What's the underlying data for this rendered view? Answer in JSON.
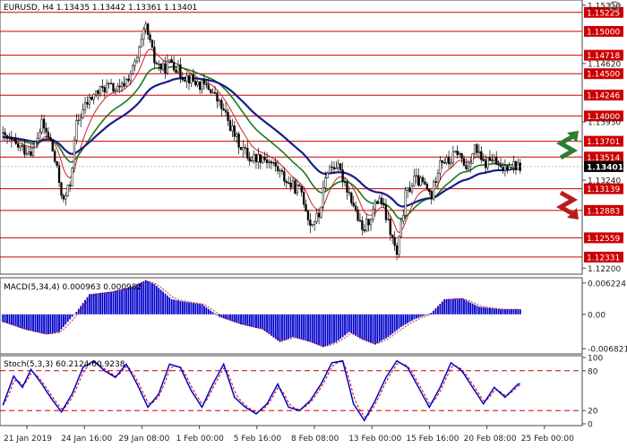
{
  "chart_data": [
    {
      "type": "candlestick",
      "title": "EURUSD, H4  1.13435 1.13442 1.13361 1.13401",
      "symbol": "EURUSD",
      "timeframe": "H4",
      "ohlc_text": "1.13435 1.13442 1.13361 1.13401",
      "ylim": [
        1.1215,
        1.1535
      ],
      "y_ticks": [
        "1.15310",
        "1.14620",
        "1.13930",
        "1.13240",
        "1.12200"
      ],
      "current_price": "1.13401",
      "levels": [
        {
          "label": "1.15225",
          "value": 1.15225
        },
        {
          "label": "1.15000",
          "value": 1.15
        },
        {
          "label": "1.14718",
          "value": 1.14718
        },
        {
          "label": "1.14500",
          "value": 1.145
        },
        {
          "label": "1.14246",
          "value": 1.14246
        },
        {
          "label": "1.14000",
          "value": 1.14
        },
        {
          "label": "1.13701",
          "value": 1.13701
        },
        {
          "label": "1.13514",
          "value": 1.13514
        },
        {
          "label": "1.13139",
          "value": 1.13139
        },
        {
          "label": "1.12883",
          "value": 1.12883
        },
        {
          "label": "1.12559",
          "value": 1.12559
        },
        {
          "label": "1.12331",
          "value": 1.12331
        }
      ],
      "close_anchors": [
        [
          0,
          1.1375
        ],
        [
          6,
          1.1365
        ],
        [
          10,
          1.136
        ],
        [
          14,
          1.136
        ],
        [
          18,
          1.139
        ],
        [
          22,
          1.137
        ],
        [
          25,
          1.1335
        ],
        [
          28,
          1.1298
        ],
        [
          31,
          1.132
        ],
        [
          34,
          1.139
        ],
        [
          38,
          1.1412
        ],
        [
          42,
          1.1425
        ],
        [
          48,
          1.1435
        ],
        [
          54,
          1.143
        ],
        [
          60,
          1.1455
        ],
        [
          62,
          1.1468
        ],
        [
          66,
          1.1505
        ],
        [
          70,
          1.1465
        ],
        [
          74,
          1.1455
        ],
        [
          78,
          1.1465
        ],
        [
          82,
          1.145
        ],
        [
          86,
          1.1445
        ],
        [
          90,
          1.1438
        ],
        [
          96,
          1.1432
        ],
        [
          102,
          1.1405
        ],
        [
          108,
          1.1372
        ],
        [
          114,
          1.135
        ],
        [
          120,
          1.1352
        ],
        [
          126,
          1.134
        ],
        [
          132,
          1.132
        ],
        [
          138,
          1.131
        ],
        [
          142,
          1.1272
        ],
        [
          146,
          1.1282
        ],
        [
          150,
          1.1338
        ],
        [
          154,
          1.1342
        ],
        [
          158,
          1.1322
        ],
        [
          162,
          1.1295
        ],
        [
          166,
          1.1262
        ],
        [
          170,
          1.1282
        ],
        [
          174,
          1.1305
        ],
        [
          178,
          1.1272
        ],
        [
          182,
          1.1235
        ],
        [
          186,
          1.1305
        ],
        [
          190,
          1.1325
        ],
        [
          194,
          1.132
        ],
        [
          198,
          1.1305
        ],
        [
          202,
          1.135
        ],
        [
          206,
          1.1345
        ],
        [
          210,
          1.1358
        ],
        [
          214,
          1.1338
        ],
        [
          218,
          1.1362
        ],
        [
          222,
          1.1342
        ],
        [
          226,
          1.135
        ],
        [
          230,
          1.1335
        ],
        [
          234,
          1.1345
        ],
        [
          238,
          1.134
        ]
      ],
      "moving_averages": [
        {
          "name": "MA fast",
          "color": "#cc2222"
        },
        {
          "name": "MA medium",
          "color": "#1a7a1a"
        },
        {
          "name": "MA slow",
          "color": "#1a1a8a"
        }
      ],
      "up_candle_color": "#ffffff",
      "down_candle_color": "#000000"
    },
    {
      "type": "histogram",
      "title": "MACD(5,34,4) 0.000963 0.000982",
      "label": "MACD(5,34,4)",
      "values_text": "0.000963 0.000982",
      "y_ticks": [
        "0.006224",
        "0.00",
        "-0.006821"
      ],
      "ylim": [
        -0.0075,
        0.0069
      ],
      "anchors": [
        [
          0,
          -0.0015
        ],
        [
          10,
          -0.003
        ],
        [
          20,
          -0.004
        ],
        [
          26,
          -0.0035
        ],
        [
          34,
          0.0005
        ],
        [
          40,
          0.004
        ],
        [
          50,
          0.0045
        ],
        [
          60,
          0.0055
        ],
        [
          66,
          0.0068
        ],
        [
          70,
          0.006
        ],
        [
          78,
          0.003
        ],
        [
          84,
          0.0025
        ],
        [
          92,
          0.002
        ],
        [
          100,
          -0.0005
        ],
        [
          110,
          -0.002
        ],
        [
          120,
          -0.003
        ],
        [
          128,
          -0.0055
        ],
        [
          134,
          -0.0045
        ],
        [
          142,
          -0.0055
        ],
        [
          148,
          -0.0065
        ],
        [
          154,
          -0.0055
        ],
        [
          160,
          -0.0035
        ],
        [
          166,
          -0.005
        ],
        [
          172,
          -0.006
        ],
        [
          178,
          -0.0045
        ],
        [
          184,
          -0.0025
        ],
        [
          190,
          -0.001
        ],
        [
          198,
          0.0003
        ],
        [
          204,
          0.003
        ],
        [
          212,
          0.0032
        ],
        [
          220,
          0.0015
        ],
        [
          230,
          0.001
        ],
        [
          238,
          0.001
        ]
      ],
      "bar_color": "#0000cc",
      "signal_color": "#cc0000"
    },
    {
      "type": "line",
      "title": "Stoch(5,3,3) 60.2124 60.9238",
      "label": "Stoch(5,3,3)",
      "values_text": "60.2124 60.9238",
      "y_ticks": [
        "100",
        "80",
        "20",
        "0"
      ],
      "ylim": [
        0,
        100
      ],
      "overbought": 80,
      "oversold": 20,
      "anchors": [
        [
          0,
          28
        ],
        [
          5,
          72
        ],
        [
          9,
          55
        ],
        [
          13,
          82
        ],
        [
          18,
          60
        ],
        [
          22,
          40
        ],
        [
          27,
          18
        ],
        [
          32,
          45
        ],
        [
          37,
          85
        ],
        [
          42,
          95
        ],
        [
          47,
          80
        ],
        [
          52,
          70
        ],
        [
          57,
          90
        ],
        [
          62,
          60
        ],
        [
          67,
          25
        ],
        [
          72,
          45
        ],
        [
          77,
          90
        ],
        [
          82,
          85
        ],
        [
          87,
          50
        ],
        [
          92,
          25
        ],
        [
          97,
          60
        ],
        [
          102,
          90
        ],
        [
          107,
          40
        ],
        [
          112,
          25
        ],
        [
          117,
          15
        ],
        [
          122,
          30
        ],
        [
          127,
          60
        ],
        [
          132,
          25
        ],
        [
          137,
          20
        ],
        [
          142,
          35
        ],
        [
          147,
          60
        ],
        [
          152,
          92
        ],
        [
          157,
          95
        ],
        [
          162,
          30
        ],
        [
          167,
          5
        ],
        [
          172,
          35
        ],
        [
          177,
          70
        ],
        [
          182,
          95
        ],
        [
          187,
          85
        ],
        [
          192,
          55
        ],
        [
          197,
          25
        ],
        [
          202,
          55
        ],
        [
          207,
          92
        ],
        [
          212,
          80
        ],
        [
          217,
          55
        ],
        [
          222,
          30
        ],
        [
          227,
          55
        ],
        [
          232,
          40
        ],
        [
          238,
          60
        ]
      ],
      "line_color": "#0000cc",
      "signal_color": "#cc0000"
    }
  ],
  "x_ticks": [
    "21 Jan 2019",
    "24 Jan 16:00",
    "29 Jan 08:00",
    "1 Feb 00:00",
    "5 Feb 16:00",
    "8 Feb 08:00",
    "13 Feb 00:00",
    "15 Feb 16:00",
    "20 Feb 08:00",
    "25 Feb 00:00"
  ],
  "arrows": [
    {
      "name": "bullish-arrow",
      "color": "#2e7d32"
    },
    {
      "name": "bearish-arrow",
      "color": "#b71c1c"
    }
  ],
  "colors": {
    "level_line": "#cc0000",
    "level_label": "#cc0000",
    "current_label": "#000000",
    "axis": "#444444"
  }
}
